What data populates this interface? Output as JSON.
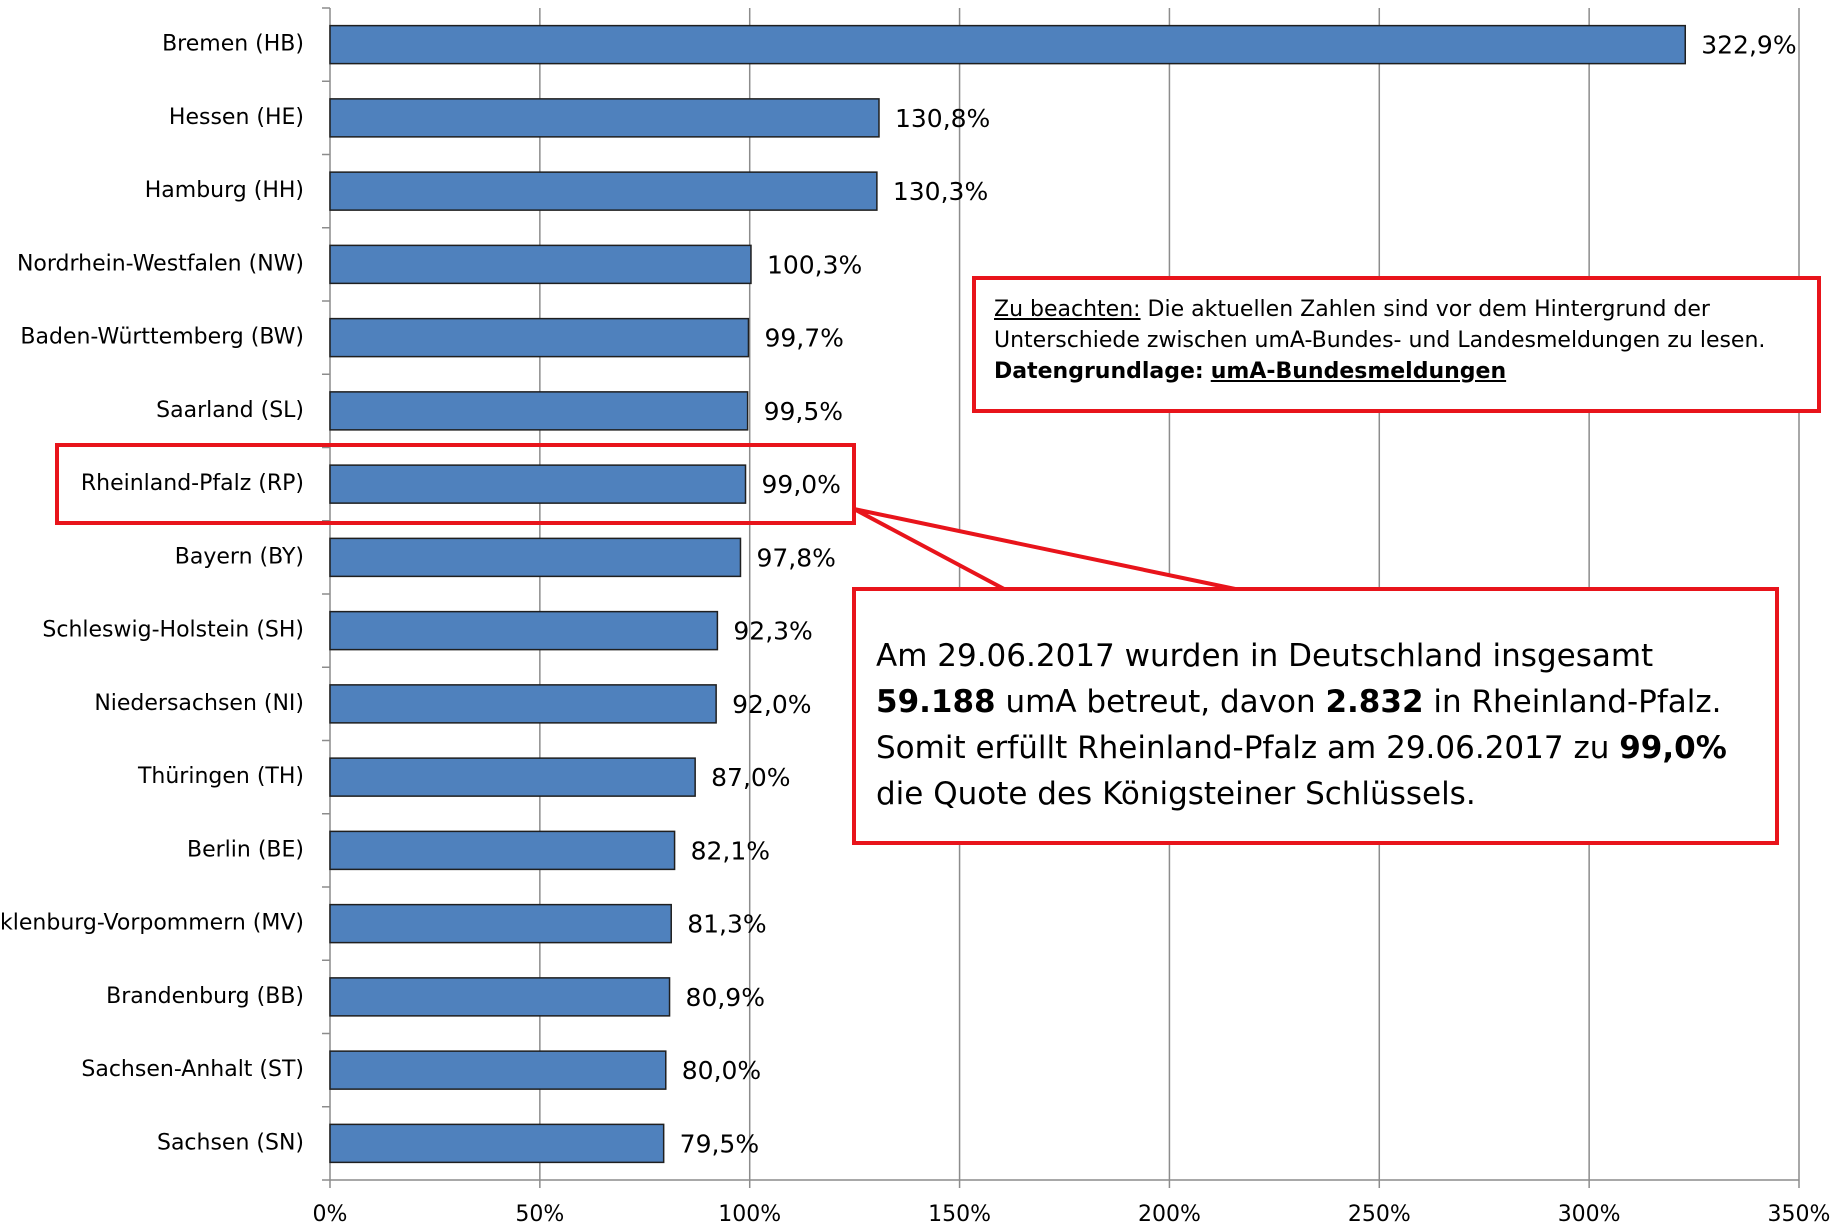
{
  "chart_data": {
    "type": "bar",
    "orientation": "horizontal",
    "categories": [
      "Bremen (HB)",
      "Hessen (HE)",
      "Hamburg (HH)",
      "Nordrhein-Westfalen (NW)",
      "Baden-Württemberg (BW)",
      "Saarland (SL)",
      "Rheinland-Pfalz (RP)",
      "Bayern (BY)",
      "Schleswig-Holstein (SH)",
      "Niedersachsen (NI)",
      "Thüringen (TH)",
      "Berlin (BE)",
      "Mecklenburg-Vorpommern (MV)",
      "Brandenburg (BB)",
      "Sachsen-Anhalt (ST)",
      "Sachsen (SN)"
    ],
    "values": [
      322.9,
      130.8,
      130.3,
      100.3,
      99.7,
      99.5,
      99.0,
      97.8,
      92.3,
      92.0,
      87.0,
      82.1,
      81.3,
      80.9,
      80.0,
      79.5
    ],
    "value_labels": [
      "322,9%",
      "130,8%",
      "130,3%",
      "100,3%",
      "99,7%",
      "99,5%",
      "99,0%",
      "97,8%",
      "92,3%",
      "92,0%",
      "87,0%",
      "82,1%",
      "81,3%",
      "80,9%",
      "80,0%",
      "79,5%"
    ],
    "color": "#4f81bd",
    "xlim": [
      0,
      350
    ],
    "xticks": [
      {
        "value": 0,
        "label": "0%"
      },
      {
        "value": 50,
        "label": "50%"
      },
      {
        "value": 100,
        "label": "100%"
      },
      {
        "value": 150,
        "label": "150%"
      },
      {
        "value": 200,
        "label": "200%"
      },
      {
        "value": 250,
        "label": "250%"
      },
      {
        "value": 300,
        "label": "300%"
      },
      {
        "value": 350,
        "label": "350%"
      }
    ],
    "grid": true,
    "annotations": {
      "note": [
        "Zu beachten:",
        " Die aktuellen Zahlen sind vor dem Hintergrund der Unterschiede zwischen umA-Bundes- und Landesmeldungen zu lesen.",
        "Datengrundlage:",
        "umA-Bundesmeldungen"
      ],
      "callout": [
        "Am 29.06.2017 wurden in Deutschland insgesamt ",
        "59.188",
        " umA betreut, davon ",
        "2.832",
        " in Rheinland-Pfalz. Somit erfüllt Rheinland-Pfalz am 29.06.2017 zu ",
        "99,0%",
        " die Quote des Königsteiner Schlüssels."
      ]
    }
  }
}
